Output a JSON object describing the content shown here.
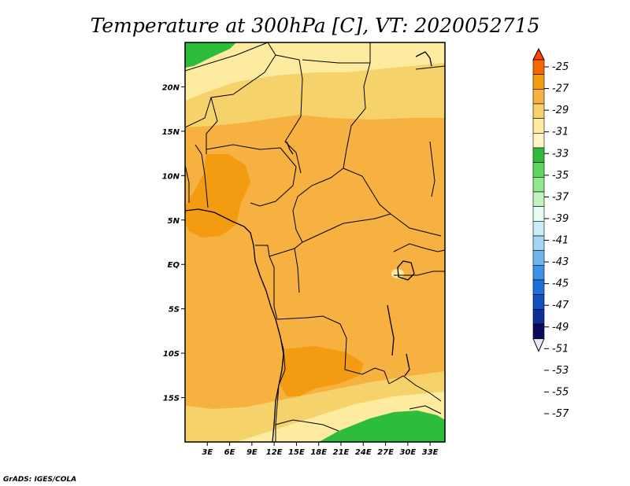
{
  "title": "Temperature at 300hPa [C], VT: 2020052715",
  "credit": "GrADS: IGES/COLA",
  "map": {
    "lon_range": [
      0,
      35
    ],
    "lat_range": [
      -20,
      25
    ],
    "x_tick_labels": [
      "3E",
      "6E",
      "9E",
      "12E",
      "15E",
      "18E",
      "21E",
      "24E",
      "27E",
      "30E",
      "33E"
    ],
    "y_tick_labels": [
      "20N",
      "15N",
      "10N",
      "5N",
      "EQ",
      "5S",
      "10S",
      "15S"
    ]
  },
  "colorbar": {
    "labels": [
      "-25",
      "-27",
      "-29",
      "-31",
      "-33",
      "-35",
      "-37",
      "-39",
      "-41",
      "-43",
      "-45",
      "-47",
      "-49",
      "-51",
      "-53",
      "-55",
      "-57"
    ],
    "colors": [
      "#ff4500",
      "#f56800",
      "#f39c12",
      "#f6b140",
      "#f6d26a",
      "#fdeba0",
      "#fff5c6",
      "#2ebd3a",
      "#5fd65f",
      "#8fe88c",
      "#c0f3bd",
      "#e6fbf2",
      "#c9ecfa",
      "#a3d5f6",
      "#6fb6ef",
      "#3f93e6",
      "#1e6fd8",
      "#124fbf",
      "#0d2f97",
      "#0a0a60",
      "#e8e8f8"
    ]
  },
  "chart_data": {
    "type": "heatmap",
    "title": "Temperature at 300hPa [C], VT: 2020052715",
    "variable": "Temperature at 300hPa",
    "units": "C",
    "valid_time": "2020052715",
    "x_ticks": [
      "3E",
      "6E",
      "9E",
      "12E",
      "15E",
      "18E",
      "21E",
      "24E",
      "27E",
      "30E",
      "33E"
    ],
    "y_ticks": [
      "20N",
      "15N",
      "10N",
      "5N",
      "EQ",
      "5S",
      "10S",
      "15S"
    ],
    "contour_levels": [
      -25,
      -27,
      -29,
      -31,
      -33,
      -35,
      -37,
      -39,
      -41,
      -43,
      -45,
      -47,
      -49,
      -51,
      -53,
      -55,
      -57
    ],
    "value_range_shown": [
      -37,
      -27
    ],
    "colors": {
      "warmest_core": "#f39c12",
      "main_field": "#f6b140",
      "northern_band": "#f6d26a",
      "pale_band": "#fdeba0",
      "cold_pocket": "#2ebd3a"
    }
  }
}
